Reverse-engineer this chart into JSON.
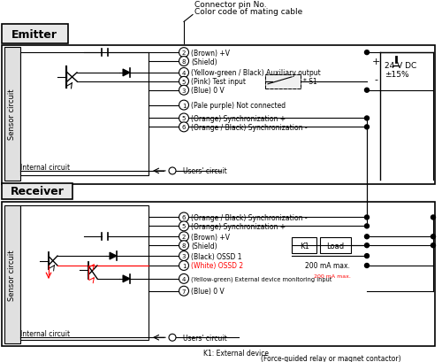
{
  "title_emitter": "Emitter",
  "title_receiver": "Receiver",
  "connector_label1": "Connector pin No.",
  "connector_label2": "Color code of mating cable",
  "voltage_label": "24 V DC\n±15%",
  "emitter_lines": [
    {
      "pin": "2",
      "color_text": "(Brown) +V",
      "y": 0
    },
    {
      "pin": "8",
      "color_text": "(Shield)",
      "y": 1
    },
    {
      "pin": "4",
      "color_text": "(Yellow-green / Black) Auxiliary output",
      "y": 2
    },
    {
      "pin": "5",
      "color_text": "(Pink) Test input",
      "y": 3
    },
    {
      "pin": "3",
      "color_text": "(Blue) 0 V",
      "y": 4
    },
    {
      "pin": "1",
      "color_text": "(Pale purple) Not connected",
      "y": 5
    },
    {
      "pin": "5",
      "color_text": "(Orange) Synchronization +",
      "y": 6
    },
    {
      "pin": "6",
      "color_text": "(Orange / Black) Synchronization -",
      "y": 7
    }
  ],
  "receiver_lines": [
    {
      "pin": "6",
      "color_text": "(Orange / Black) Synchronization -",
      "y": 0
    },
    {
      "pin": "5",
      "color_text": "(Orange) Synchronization +",
      "y": 1
    },
    {
      "pin": "2",
      "color_text": "(Brown) +V",
      "y": 2
    },
    {
      "pin": "8",
      "color_text": "(Shield)",
      "y": 3
    },
    {
      "pin": "3",
      "color_text": "(Black) OSSD 1",
      "y": 4
    },
    {
      "pin": "1",
      "color_text": "(White) OSSD 2",
      "y": 5
    },
    {
      "pin": "4",
      "color_text": "(Yellow-green) External device monitoring input",
      "y": 6
    },
    {
      "pin": "7",
      "color_text": "(Blue) 0 V",
      "y": 7
    }
  ],
  "bg_color": "#ffffff",
  "box_color": "#dddddd",
  "line_color": "#000000",
  "red_color": "#ff0000",
  "blue_label_color": "#1a1aff",
  "text_color": "#000000"
}
